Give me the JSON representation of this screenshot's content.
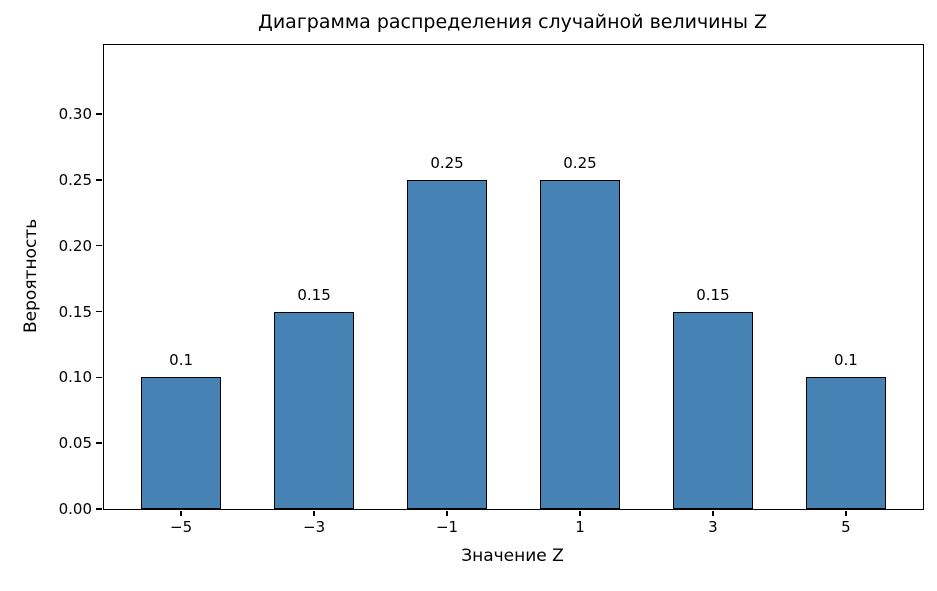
{
  "chart_data": {
    "type": "bar",
    "title": "Диаграмма распределения случайной величины Z",
    "xlabel": "Значение Z",
    "ylabel": "Вероятность",
    "categories": [
      "−5",
      "−3",
      "−1",
      "1",
      "3",
      "5"
    ],
    "values": [
      0.1,
      0.15,
      0.25,
      0.25,
      0.15,
      0.1
    ],
    "bar_labels": [
      "0.1",
      "0.15",
      "0.25",
      "0.25",
      "0.15",
      "0.1"
    ],
    "y_ticks": [
      "0.00",
      "0.05",
      "0.10",
      "0.15",
      "0.20",
      "0.25",
      "0.30"
    ],
    "ylim": [
      0,
      0.3525
    ],
    "grid": false,
    "legend": null,
    "bar_color": "#4682B4",
    "bar_edge_color": "#000000",
    "background": "#ffffff"
  }
}
